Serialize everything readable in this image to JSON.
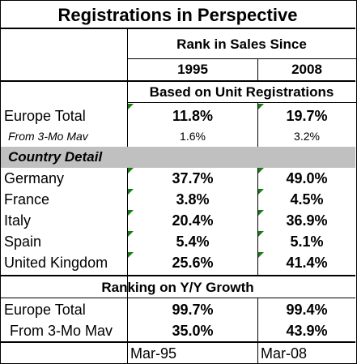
{
  "title": "Registrations in Perspective",
  "rank_header": "Rank in Sales Since",
  "years": [
    "1995",
    "2008"
  ],
  "unit_header": "Based on Unit Registrations",
  "europe_total": {
    "label": "Europe Total",
    "v1995": "11.8%",
    "v2008": "19.7%"
  },
  "from_3mo": {
    "label": "From 3-Mo Mav",
    "v1995": "1.6%",
    "v2008": "3.2%"
  },
  "country_detail_label": "Country Detail",
  "countries": [
    {
      "label": "Germany",
      "v1995": "37.7%",
      "v2008": "49.0%"
    },
    {
      "label": "France",
      "v1995": "3.8%",
      "v2008": "4.5%"
    },
    {
      "label": "Italy",
      "v1995": "20.4%",
      "v2008": "36.9%"
    },
    {
      "label": "Spain",
      "v1995": "5.4%",
      "v2008": "5.1%"
    },
    {
      "label": "United Kingdom",
      "v1995": "25.6%",
      "v2008": "41.4%"
    }
  ],
  "growth_header": "Ranking on Y/Y Growth",
  "growth_europe": {
    "label": "Europe Total",
    "v1995": "99.7%",
    "v2008": "99.4%"
  },
  "growth_3mo": {
    "label": "From 3-Mo Mav",
    "v1995": "35.0%",
    "v2008": "43.9%"
  },
  "footer": [
    "Mar-95",
    "Mar-08"
  ],
  "colors": {
    "section_bg": "#c0c0c0",
    "comment_marker": "#1a7a1a"
  }
}
